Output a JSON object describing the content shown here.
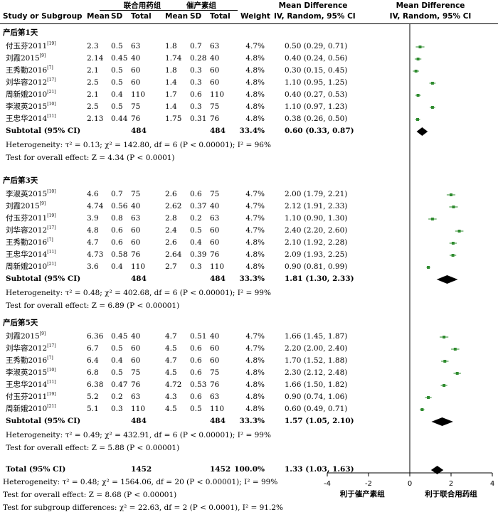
{
  "header": {
    "group1": "联合用药组",
    "group2": "催产素组",
    "study": "Study or Subgroup",
    "mean1": "Mean",
    "sd1": "SD",
    "total1": "Total",
    "mean2": "Mean",
    "sd2": "SD",
    "total2": "Total",
    "weight": "Weight",
    "md_title": "Mean Difference",
    "md_method": "IV, Random, 95% CI",
    "plot_title": "Mean Difference",
    "plot_method": "IV, Random, 95% CI"
  },
  "chart_data": {
    "type": "forest",
    "x_ticks": [
      -4,
      -2,
      0,
      2,
      4
    ],
    "xlim": [
      -4,
      4
    ],
    "axis_left_label": "利于催产素组",
    "axis_right_label": "利于联合用药组",
    "subgroups": [
      {
        "title": "产后第1天",
        "studies": [
          {
            "name": "付玉芬2011",
            "ref": "[19]",
            "mean1": "2.3",
            "sd1": "0.5",
            "n1": "63",
            "mean2": "1.8",
            "sd2": "0.7",
            "n2": "63",
            "weight": "4.7%",
            "md": 0.5,
            "lo": 0.29,
            "hi": 0.71,
            "ci": "0.50 (0.29, 0.71)"
          },
          {
            "name": "刘霞2015",
            "ref": "[9]",
            "mean1": "2.14",
            "sd1": "0.45",
            "n1": "40",
            "mean2": "1.74",
            "sd2": "0.28",
            "n2": "40",
            "weight": "4.8%",
            "md": 0.4,
            "lo": 0.24,
            "hi": 0.56,
            "ci": "0.40 (0.24, 0.56)"
          },
          {
            "name": "王秀勤2016",
            "ref": "[7]",
            "mean1": "2.1",
            "sd1": "0.5",
            "n1": "60",
            "mean2": "1.8",
            "sd2": "0.3",
            "n2": "60",
            "weight": "4.8%",
            "md": 0.3,
            "lo": 0.15,
            "hi": 0.45,
            "ci": "0.30 (0.15, 0.45)"
          },
          {
            "name": "刘华容2012",
            "ref": "[17]",
            "mean1": "2.5",
            "sd1": "0.5",
            "n1": "60",
            "mean2": "1.4",
            "sd2": "0.3",
            "n2": "60",
            "weight": "4.8%",
            "md": 1.1,
            "lo": 0.95,
            "hi": 1.25,
            "ci": "1.10 (0.95, 1.25)"
          },
          {
            "name": "周新娥2010",
            "ref": "[21]",
            "mean1": "2.1",
            "sd1": "0.4",
            "n1": "110",
            "mean2": "1.7",
            "sd2": "0.6",
            "n2": "110",
            "weight": "4.8%",
            "md": 0.4,
            "lo": 0.27,
            "hi": 0.53,
            "ci": "0.40 (0.27, 0.53)"
          },
          {
            "name": "李淑英2015",
            "ref": "[10]",
            "mean1": "2.5",
            "sd1": "0.5",
            "n1": "75",
            "mean2": "1.4",
            "sd2": "0.3",
            "n2": "75",
            "weight": "4.8%",
            "md": 1.1,
            "lo": 0.97,
            "hi": 1.23,
            "ci": "1.10 (0.97, 1.23)"
          },
          {
            "name": "王忠华2014",
            "ref": "[11]",
            "mean1": "2.13",
            "sd1": "0.44",
            "n1": "76",
            "mean2": "1.75",
            "sd2": "0.31",
            "n2": "76",
            "weight": "4.8%",
            "md": 0.38,
            "lo": 0.26,
            "hi": 0.5,
            "ci": "0.38 (0.26, 0.50)"
          }
        ],
        "subtotal": {
          "label": "Subtotal (95% CI)",
          "n1": "484",
          "n2": "484",
          "weight": "33.4%",
          "md": 0.6,
          "lo": 0.33,
          "hi": 0.87,
          "ci": "0.60 (0.33, 0.87)"
        },
        "heterogeneity": "Heterogeneity: τ² = 0.13; χ² = 142.80, df = 6 (P < 0.00001); I² = 96%",
        "overall": "Test for overall effect: Z = 4.34 (P < 0.0001)"
      },
      {
        "title": "产后第3天",
        "studies": [
          {
            "name": "李淑英2015",
            "ref": "[10]",
            "mean1": "4.6",
            "sd1": "0.7",
            "n1": "75",
            "mean2": "2.6",
            "sd2": "0.6",
            "n2": "75",
            "weight": "4.7%",
            "md": 2.0,
            "lo": 1.79,
            "hi": 2.21,
            "ci": "2.00 (1.79, 2.21)"
          },
          {
            "name": "刘霞2015",
            "ref": "[9]",
            "mean1": "4.74",
            "sd1": "0.56",
            "n1": "40",
            "mean2": "2.62",
            "sd2": "0.37",
            "n2": "40",
            "weight": "4.7%",
            "md": 2.12,
            "lo": 1.91,
            "hi": 2.33,
            "ci": "2.12 (1.91, 2.33)"
          },
          {
            "name": "付玉芬2011",
            "ref": "[19]",
            "mean1": "3.9",
            "sd1": "0.8",
            "n1": "63",
            "mean2": "2.8",
            "sd2": "0.2",
            "n2": "63",
            "weight": "4.7%",
            "md": 1.1,
            "lo": 0.9,
            "hi": 1.3,
            "ci": "1.10 (0.90, 1.30)"
          },
          {
            "name": "刘华容2012",
            "ref": "[17]",
            "mean1": "4.8",
            "sd1": "0.6",
            "n1": "60",
            "mean2": "2.4",
            "sd2": "0.5",
            "n2": "60",
            "weight": "4.7%",
            "md": 2.4,
            "lo": 2.2,
            "hi": 2.6,
            "ci": "2.40 (2.20, 2.60)"
          },
          {
            "name": "王秀勤2016",
            "ref": "[7]",
            "mean1": "4.7",
            "sd1": "0.6",
            "n1": "60",
            "mean2": "2.6",
            "sd2": "0.4",
            "n2": "60",
            "weight": "4.8%",
            "md": 2.1,
            "lo": 1.92,
            "hi": 2.28,
            "ci": "2.10 (1.92, 2.28)"
          },
          {
            "name": "王忠华2014",
            "ref": "[11]",
            "mean1": "4.73",
            "sd1": "0.58",
            "n1": "76",
            "mean2": "2.64",
            "sd2": "0.39",
            "n2": "76",
            "weight": "4.8%",
            "md": 2.09,
            "lo": 1.93,
            "hi": 2.25,
            "ci": "2.09 (1.93, 2.25)"
          },
          {
            "name": "周新娥2010",
            "ref": "[21]",
            "mean1": "3.6",
            "sd1": "0.4",
            "n1": "110",
            "mean2": "2.7",
            "sd2": "0.3",
            "n2": "110",
            "weight": "4.8%",
            "md": 0.9,
            "lo": 0.81,
            "hi": 0.99,
            "ci": "0.90 (0.81, 0.99)"
          }
        ],
        "subtotal": {
          "label": "Subtotal (95% CI)",
          "n1": "484",
          "n2": "484",
          "weight": "33.3%",
          "md": 1.81,
          "lo": 1.3,
          "hi": 2.33,
          "ci": "1.81 (1.30, 2.33)"
        },
        "heterogeneity": "Heterogeneity: τ² = 0.48; χ² = 402.68, df = 6 (P < 0.00001); I² = 99%",
        "overall": "Test for overall effect: Z = 6.89 (P < 0.00001)"
      },
      {
        "title": "产后第5天",
        "studies": [
          {
            "name": "刘霞2015",
            "ref": "[9]",
            "mean1": "6.36",
            "sd1": "0.45",
            "n1": "40",
            "mean2": "4.7",
            "sd2": "0.51",
            "n2": "40",
            "weight": "4.7%",
            "md": 1.66,
            "lo": 1.45,
            "hi": 1.87,
            "ci": "1.66 (1.45, 1.87)"
          },
          {
            "name": "刘华容2012",
            "ref": "[17]",
            "mean1": "6.7",
            "sd1": "0.5",
            "n1": "60",
            "mean2": "4.5",
            "sd2": "0.6",
            "n2": "60",
            "weight": "4.7%",
            "md": 2.2,
            "lo": 2.0,
            "hi": 2.4,
            "ci": "2.20 (2.00, 2.40)"
          },
          {
            "name": "王秀勤2016",
            "ref": "[7]",
            "mean1": "6.4",
            "sd1": "0.4",
            "n1": "60",
            "mean2": "4.7",
            "sd2": "0.6",
            "n2": "60",
            "weight": "4.8%",
            "md": 1.7,
            "lo": 1.52,
            "hi": 1.88,
            "ci": "1.70 (1.52, 1.88)"
          },
          {
            "name": "李淑英2015",
            "ref": "[10]",
            "mean1": "6.8",
            "sd1": "0.5",
            "n1": "75",
            "mean2": "4.5",
            "sd2": "0.6",
            "n2": "75",
            "weight": "4.8%",
            "md": 2.3,
            "lo": 2.12,
            "hi": 2.48,
            "ci": "2.30 (2.12, 2.48)"
          },
          {
            "name": "王忠华2014",
            "ref": "[11]",
            "mean1": "6.38",
            "sd1": "0.47",
            "n1": "76",
            "mean2": "4.72",
            "sd2": "0.53",
            "n2": "76",
            "weight": "4.8%",
            "md": 1.66,
            "lo": 1.5,
            "hi": 1.82,
            "ci": "1.66 (1.50, 1.82)"
          },
          {
            "name": "付玉芬2011",
            "ref": "[19]",
            "mean1": "5.2",
            "sd1": "0.2",
            "n1": "63",
            "mean2": "4.3",
            "sd2": "0.6",
            "n2": "63",
            "weight": "4.8%",
            "md": 0.9,
            "lo": 0.74,
            "hi": 1.06,
            "ci": "0.90 (0.74, 1.06)"
          },
          {
            "name": "周新娥2010",
            "ref": "[21]",
            "mean1": "5.1",
            "sd1": "0.3",
            "n1": "110",
            "mean2": "4.5",
            "sd2": "0.5",
            "n2": "110",
            "weight": "4.8%",
            "md": 0.6,
            "lo": 0.49,
            "hi": 0.71,
            "ci": "0.60 (0.49, 0.71)"
          }
        ],
        "subtotal": {
          "label": "Subtotal (95% CI)",
          "n1": "484",
          "n2": "484",
          "weight": "33.3%",
          "md": 1.57,
          "lo": 1.05,
          "hi": 2.1,
          "ci": "1.57 (1.05, 2.10)"
        },
        "heterogeneity": "Heterogeneity: τ² = 0.49; χ² = 432.91, df = 6 (P < 0.00001); I² = 99%",
        "overall": "Test for overall effect: Z = 5.88 (P < 0.00001)"
      }
    ],
    "total": {
      "label": "Total (95% CI)",
      "n1": "1452",
      "n2": "1452",
      "weight": "100.0%",
      "md": 1.33,
      "lo": 1.03,
      "hi": 1.63,
      "ci": "1.33 (1.03, 1.63)"
    },
    "total_heterogeneity": "Heterogeneity: τ² = 0.48; χ² = 1564.06, df = 20 (P < 0.00001); I² = 99%",
    "total_overall": "Test for overall effect: Z = 8.68 (P < 0.00001)",
    "subgroup_diff": "Test for subgroup differences: χ² = 22.63, df = 2 (P < 0.0001), I² = 91.2%"
  }
}
